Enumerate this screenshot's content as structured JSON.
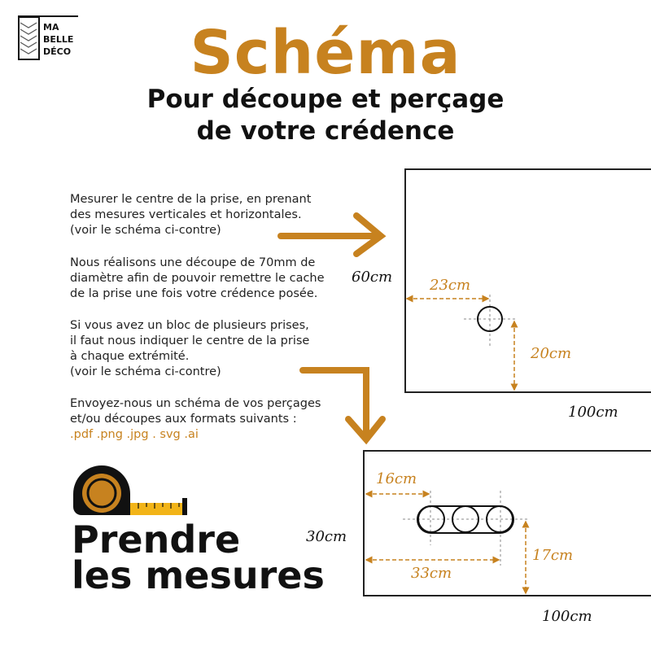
{
  "logo": {
    "lines": [
      "MA",
      "BELLE",
      "DÉCO"
    ]
  },
  "header": {
    "title": "Schéma",
    "subtitle_line1": "Pour découpe et perçage",
    "subtitle_line2": "de votre crédence"
  },
  "instructions": {
    "p1": [
      "Mesurer le centre de la prise, en prenant",
      "des mesures verticales et horizontales.",
      "(voir le schéma ci-contre)"
    ],
    "p2": [
      "Nous réalisons une découpe de 70mm de",
      "diamètre afin de pouvoir remettre le cache",
      "de la prise une fois votre crédence posée."
    ],
    "p3": [
      "Si vous avez un bloc de plusieurs prises,",
      "il faut nous indiquer le centre de la prise",
      "à chaque extrémité.",
      "(voir le schéma ci-contre)"
    ],
    "p4": [
      "Envoyez-nous un schéma de vos perçages",
      "et/ou découpes aux formats suivants :"
    ],
    "formats": ".pdf .png .jpg . svg .ai"
  },
  "diagram1": {
    "height": "60cm",
    "width": "100cm",
    "horizontal": "23cm",
    "vertical": "20cm"
  },
  "diagram2": {
    "height": "30cm",
    "width": "100cm",
    "left_center": "16cm",
    "right_center": "33cm",
    "vertical": "17cm"
  },
  "footer": {
    "line1": "Prendre",
    "line2": "les mesures"
  },
  "colors": {
    "accent": "#c7821f",
    "text": "#111111",
    "tape_yellow": "#f2b418"
  }
}
